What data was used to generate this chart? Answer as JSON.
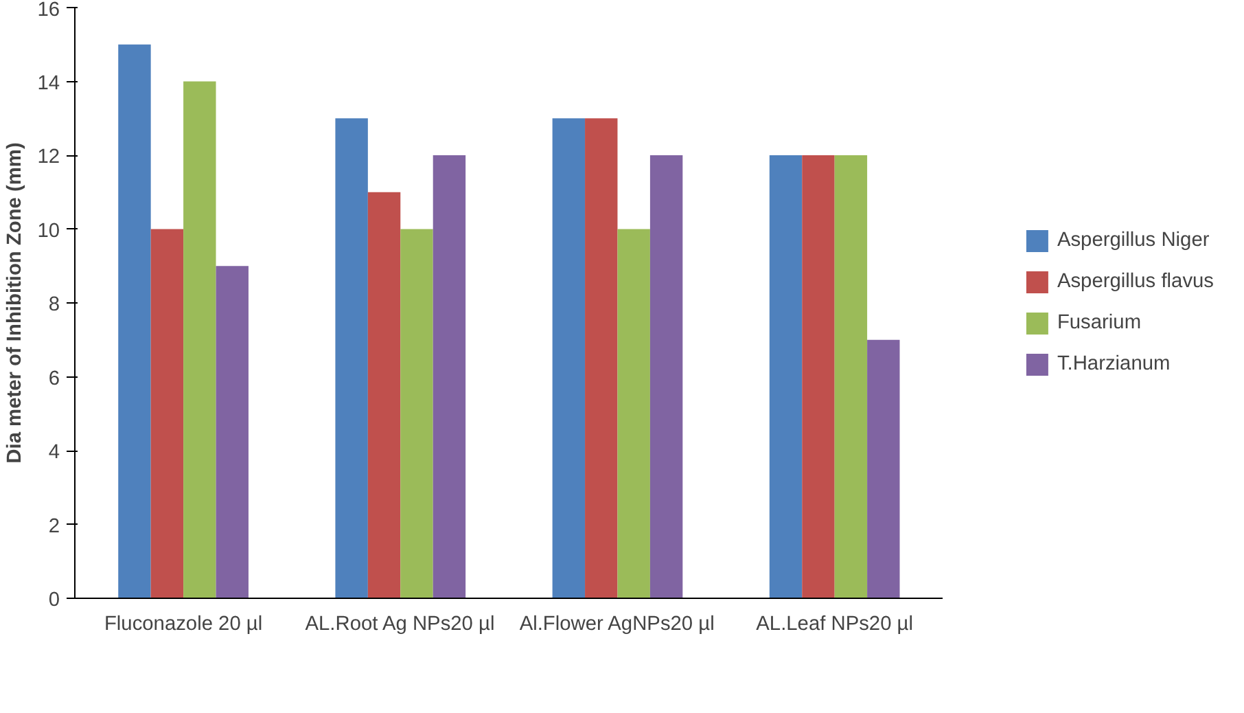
{
  "chart_data": {
    "type": "bar",
    "ylabel": "Dia meter of Inhibition Zone (mm)",
    "categories": [
      "Fluconazole 20 µl",
      "AL.Root Ag NPs20 µl",
      "Al.Flower AgNPs20 µl",
      "AL.Leaf NPs20 µl"
    ],
    "series": [
      {
        "name": "Aspergillus Niger",
        "color": "#4f81bd",
        "values": [
          15,
          13,
          13,
          12
        ]
      },
      {
        "name": "Aspergillus flavus",
        "color": "#c0504d",
        "values": [
          10,
          11,
          13,
          12
        ]
      },
      {
        "name": "Fusarium",
        "color": "#9bbb59",
        "values": [
          14,
          10,
          10,
          12
        ]
      },
      {
        "name": "T.Harzianum",
        "color": "#8064a2",
        "values": [
          9,
          12,
          12,
          7
        ]
      }
    ],
    "ylim": [
      0,
      16
    ],
    "yticks": [
      0,
      2,
      4,
      6,
      8,
      10,
      12,
      14,
      16
    ],
    "grid": false,
    "legend": "right"
  }
}
